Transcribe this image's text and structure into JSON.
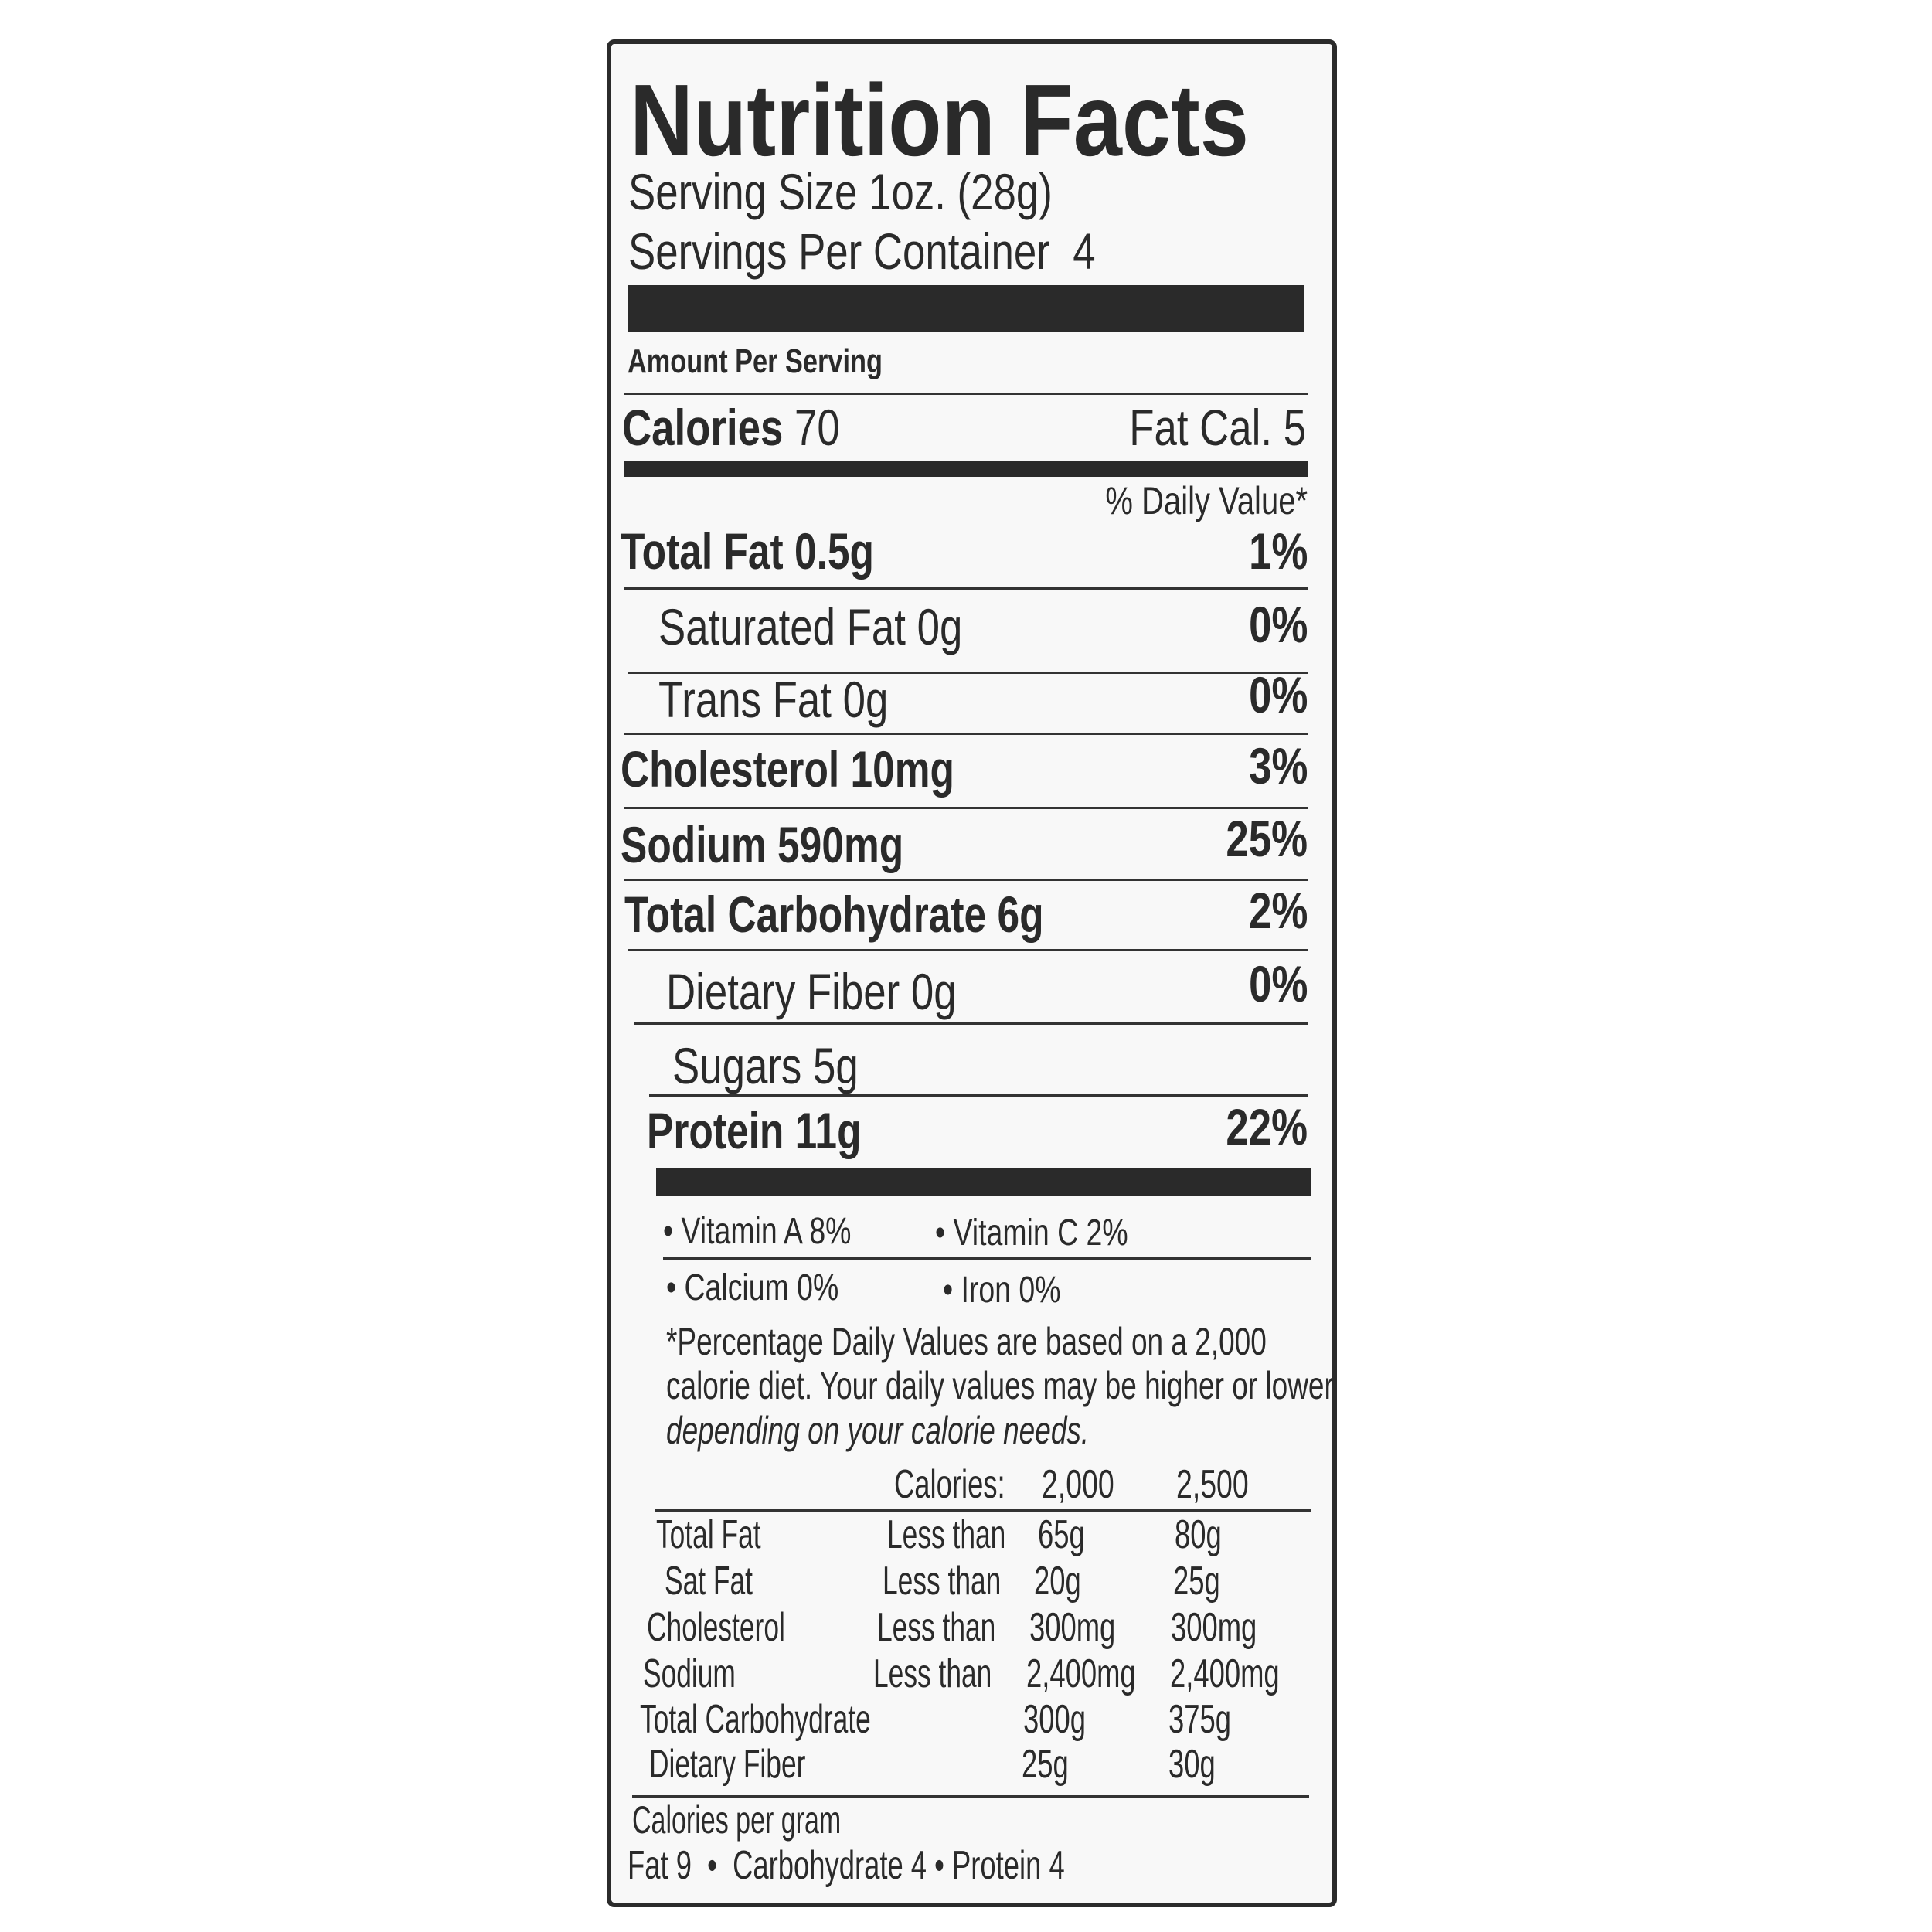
{
  "title": "Nutrition Facts",
  "serving_size": "Serving Size 1oz. (28g)",
  "servings_per_container": "Servings Per Container  4",
  "amount_per_serving": "Amount Per Serving",
  "calories": {
    "label": "Calories",
    "value": "70",
    "fat_cal": "Fat Cal. 5"
  },
  "daily_value_header": "% Daily Value*",
  "nutrients": [
    {
      "name": "Total Fat 0.5g",
      "dv": "1%"
    },
    {
      "name": "Saturated Fat 0g",
      "dv": "0%"
    },
    {
      "name": "Trans Fat 0g",
      "dv": "0%"
    },
    {
      "name": "Cholesterol 10mg",
      "dv": "3%"
    },
    {
      "name": "Sodium 590mg",
      "dv": "25%"
    },
    {
      "name": "Total Carbohydrate 6g",
      "dv": "2%"
    },
    {
      "name": "Dietary Fiber 0g",
      "dv": "0%"
    },
    {
      "name": "Sugars 5g",
      "dv": ""
    },
    {
      "name": "Protein 11g",
      "dv": "22%"
    }
  ],
  "vitamins": [
    "• Vitamin A 8%",
    "• Vitamin C 2%",
    "• Calcium 0%",
    "• Iron 0%"
  ],
  "footnote": [
    "*Percentage Daily Values are based on a 2,000",
    "calorie diet. Your daily values may be higher or lower",
    "depending on your calorie needs."
  ],
  "dv_table": {
    "header": [
      "Calories:",
      "2,000",
      "2,500"
    ],
    "rows": [
      [
        "Total Fat",
        "Less than",
        "65g",
        "80g"
      ],
      [
        "Sat Fat",
        "Less than",
        "20g",
        "25g"
      ],
      [
        "Cholesterol",
        "Less than",
        "300mg",
        "300mg"
      ],
      [
        "Sodium",
        "Less than",
        "2,400mg",
        "2,400mg"
      ],
      [
        "Total Carbohydrate",
        "",
        "300g",
        "375g"
      ],
      [
        "Dietary Fiber",
        "",
        "25g",
        "30g"
      ]
    ]
  },
  "calories_per_gram": {
    "label": "Calories per gram",
    "values": "Fat 9  •  Carbohydrate 4 • Protein 4"
  }
}
